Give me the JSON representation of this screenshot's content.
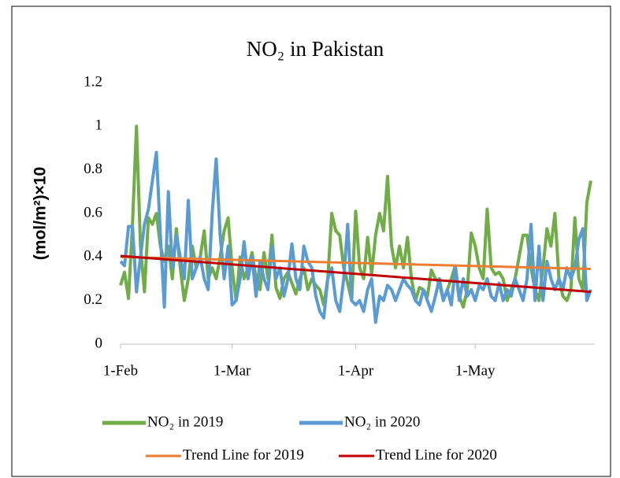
{
  "chart_data": {
    "type": "line",
    "title": "NO₂ in Pakistan",
    "y_label": "(mol/m²)×10",
    "x": [
      0,
      1,
      2,
      3,
      4,
      5,
      6,
      7,
      8,
      9,
      10,
      11,
      12,
      13,
      14,
      15,
      16,
      17,
      18,
      19,
      20,
      21,
      22,
      23,
      24,
      25,
      26,
      27,
      28,
      29,
      30,
      31,
      32,
      33,
      34,
      35,
      36,
      37,
      38,
      39,
      40,
      41,
      42,
      43,
      44,
      45,
      46,
      47,
      48,
      49,
      50,
      51,
      52,
      53,
      54,
      55,
      56,
      57,
      58,
      59,
      60,
      61,
      62,
      63,
      64,
      65,
      66,
      67,
      68,
      69,
      70,
      71,
      72,
      73,
      74,
      75,
      76,
      77,
      78,
      79,
      80,
      81,
      82,
      83,
      84,
      85,
      86,
      87,
      88,
      89,
      90,
      91,
      92,
      93,
      94,
      95,
      96,
      97,
      98,
      99,
      100,
      101,
      102,
      103,
      104,
      105,
      106,
      107,
      108,
      109,
      110,
      111,
      112,
      113,
      114,
      115,
      116,
      117,
      118
    ],
    "xlim": [
      0,
      119
    ],
    "xticks": [
      {
        "value": 0,
        "label": "1-Feb"
      },
      {
        "value": 28,
        "label": "1-Mar"
      },
      {
        "value": 59,
        "label": "1-Apr"
      },
      {
        "value": 89,
        "label": "1-May"
      }
    ],
    "ylim": [
      0,
      1.2
    ],
    "yticks": [
      0,
      0.2,
      0.4,
      0.6,
      0.8,
      1,
      1.2
    ],
    "grid": false,
    "legend": "bottom",
    "series": [
      {
        "name": "NO₂ in 2019",
        "color": "#70ad47",
        "values": [
          0.27,
          0.33,
          0.21,
          0.55,
          1.0,
          0.45,
          0.24,
          0.58,
          0.55,
          0.6,
          0.45,
          0.38,
          0.45,
          0.3,
          0.53,
          0.35,
          0.2,
          0.3,
          0.45,
          0.35,
          0.4,
          0.52,
          0.3,
          0.35,
          0.3,
          0.4,
          0.52,
          0.58,
          0.35,
          0.2,
          0.4,
          0.3,
          0.35,
          0.42,
          0.3,
          0.25,
          0.42,
          0.3,
          0.5,
          0.26,
          0.21,
          0.3,
          0.33,
          0.28,
          0.23,
          0.3,
          0.35,
          0.25,
          0.3,
          0.27,
          0.25,
          0.18,
          0.3,
          0.6,
          0.52,
          0.5,
          0.35,
          0.28,
          0.2,
          0.61,
          0.35,
          0.3,
          0.49,
          0.32,
          0.5,
          0.6,
          0.52,
          0.77,
          0.45,
          0.35,
          0.45,
          0.35,
          0.49,
          0.3,
          0.2,
          0.26,
          0.25,
          0.22,
          0.34,
          0.3,
          0.28,
          0.2,
          0.25,
          0.3,
          0.36,
          0.22,
          0.17,
          0.25,
          0.51,
          0.45,
          0.35,
          0.3,
          0.62,
          0.35,
          0.32,
          0.33,
          0.3,
          0.2,
          0.25,
          0.3,
          0.4,
          0.5,
          0.5,
          0.35,
          0.25,
          0.2,
          0.35,
          0.53,
          0.45,
          0.6,
          0.3,
          0.22,
          0.2,
          0.25,
          0.58,
          0.3,
          0.25,
          0.65,
          0.75
        ]
      },
      {
        "name": "NO₂ in 2020",
        "color": "#5b9bd5",
        "values": [
          0.38,
          0.36,
          0.54,
          0.54,
          0.24,
          0.4,
          0.55,
          0.62,
          0.75,
          0.88,
          0.5,
          0.17,
          0.7,
          0.35,
          0.5,
          0.4,
          0.3,
          0.66,
          0.3,
          0.35,
          0.4,
          0.3,
          0.25,
          0.6,
          0.85,
          0.5,
          0.3,
          0.45,
          0.18,
          0.2,
          0.3,
          0.47,
          0.3,
          0.4,
          0.22,
          0.38,
          0.3,
          0.25,
          0.45,
          0.3,
          0.35,
          0.22,
          0.3,
          0.46,
          0.3,
          0.25,
          0.45,
          0.38,
          0.35,
          0.22,
          0.15,
          0.12,
          0.3,
          0.35,
          0.2,
          0.15,
          0.3,
          0.55,
          0.2,
          0.18,
          0.2,
          0.15,
          0.25,
          0.3,
          0.1,
          0.22,
          0.2,
          0.27,
          0.25,
          0.2,
          0.25,
          0.3,
          0.27,
          0.25,
          0.2,
          0.18,
          0.25,
          0.2,
          0.15,
          0.22,
          0.3,
          0.2,
          0.25,
          0.18,
          0.35,
          0.2,
          0.3,
          0.22,
          0.25,
          0.2,
          0.27,
          0.25,
          0.3,
          0.22,
          0.2,
          0.28,
          0.2,
          0.25,
          0.22,
          0.3,
          0.25,
          0.2,
          0.3,
          0.55,
          0.2,
          0.45,
          0.2,
          0.38,
          0.3,
          0.25,
          0.3,
          0.25,
          0.35,
          0.3,
          0.35,
          0.48,
          0.53,
          0.2,
          0.25
        ]
      },
      {
        "name": "Trend Line for 2019",
        "color": "#ed7d31",
        "x": [
          0,
          118
        ],
        "values": [
          0.4,
          0.345
        ]
      },
      {
        "name": "Trend Line for 2020",
        "color": "#c00000",
        "x": [
          0,
          118
        ],
        "values": [
          0.405,
          0.24
        ]
      }
    ]
  }
}
